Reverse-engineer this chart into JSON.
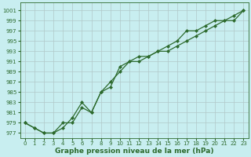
{
  "line1_x": [
    0,
    1,
    2,
    3,
    4,
    5,
    6,
    7,
    8,
    9,
    10,
    11,
    12,
    13,
    14,
    15,
    16,
    17,
    18,
    19,
    20,
    21,
    22,
    23
  ],
  "line1_y": [
    979,
    978,
    977,
    977,
    979,
    979,
    982,
    981,
    985,
    987,
    989,
    991,
    991,
    992,
    993,
    993,
    994,
    995,
    996,
    997,
    998,
    999,
    999,
    1001
  ],
  "line2_x": [
    0,
    1,
    2,
    3,
    4,
    5,
    6,
    7,
    8,
    9,
    10,
    11,
    12,
    13,
    14,
    15,
    16,
    17,
    18,
    19,
    20,
    21,
    22,
    23
  ],
  "line2_y": [
    979,
    978,
    977,
    977,
    978,
    980,
    983,
    981,
    985,
    986,
    990,
    991,
    992,
    992,
    993,
    994,
    995,
    997,
    997,
    998,
    999,
    999,
    1000,
    1001
  ],
  "line_color": "#2d6a2d",
  "marker": "D",
  "markersize": 2.0,
  "background_color": "#c8eef0",
  "grid_color": "#b0c8c8",
  "xlabel": "Graphe pression niveau de la mer (hPa)",
  "xlabel_fontsize": 6.5,
  "ytick_labels": [
    977,
    979,
    981,
    983,
    985,
    987,
    989,
    991,
    993,
    995,
    997,
    999,
    1001
  ],
  "ylim": [
    976.0,
    1002.5
  ],
  "xlim": [
    -0.5,
    23.5
  ],
  "xtick_labels": [
    "0",
    "1",
    "2",
    "3",
    "4",
    "5",
    "6",
    "7",
    "8",
    "9",
    "10",
    "11",
    "12",
    "13",
    "14",
    "15",
    "16",
    "17",
    "18",
    "19",
    "20",
    "21",
    "22",
    "23"
  ],
  "tick_fontsize": 5.0
}
